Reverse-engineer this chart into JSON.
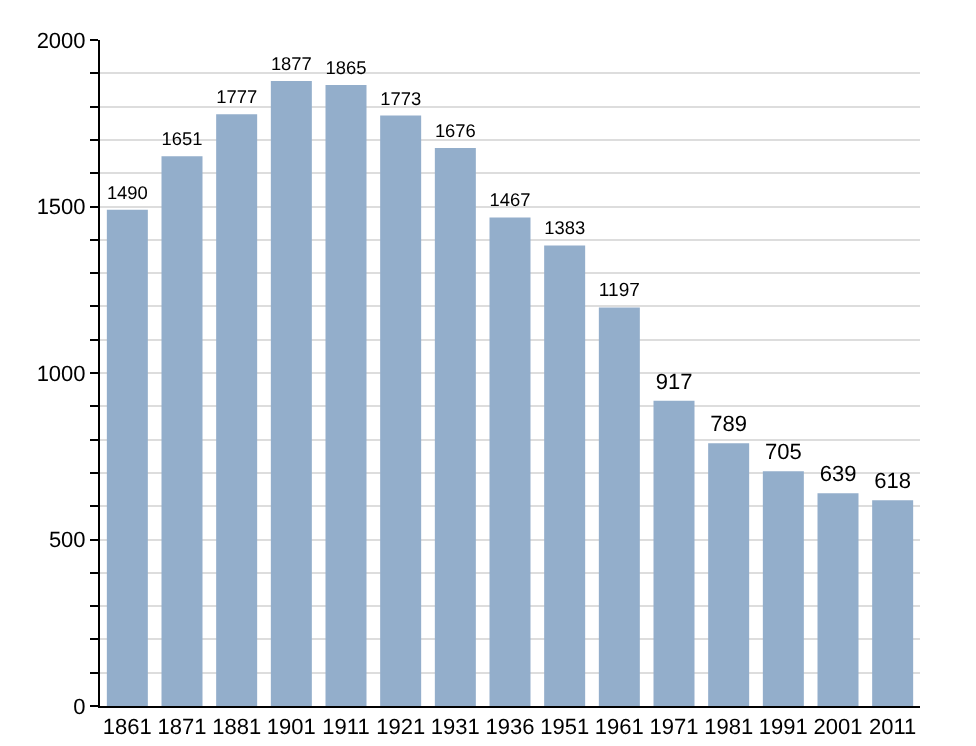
{
  "chart_data": {
    "type": "bar",
    "categories": [
      "1861",
      "1871",
      "1881",
      "1901",
      "1911",
      "1921",
      "1931",
      "1936",
      "1951",
      "1961",
      "1971",
      "1981",
      "1991",
      "2001",
      "2011"
    ],
    "values": [
      1490,
      1651,
      1777,
      1877,
      1865,
      1773,
      1676,
      1467,
      1383,
      1197,
      917,
      789,
      705,
      639,
      618
    ],
    "color": "#93aecb",
    "ylim": [
      0,
      2000
    ],
    "yticks": [
      0,
      {
        "value": 100,
        "label": null
      },
      {
        "value": 200,
        "label": null
      },
      {
        "value": 300,
        "label": null
      },
      {
        "value": 400,
        "label": null
      },
      500,
      {
        "value": 600,
        "label": null
      },
      {
        "value": 700,
        "label": null
      },
      {
        "value": 800,
        "label": null
      },
      {
        "value": 900,
        "label": null
      },
      1000,
      {
        "value": 1100,
        "label": null
      },
      {
        "value": 1200,
        "label": null
      },
      {
        "value": 1300,
        "label": null
      },
      {
        "value": 1400,
        "label": null
      },
      1500,
      {
        "value": 1600,
        "label": null
      },
      {
        "value": 1700,
        "label": null
      },
      {
        "value": 1800,
        "label": null
      },
      {
        "value": 1900,
        "label": null
      },
      2000
    ],
    "grid": "y",
    "data_labels": true
  }
}
